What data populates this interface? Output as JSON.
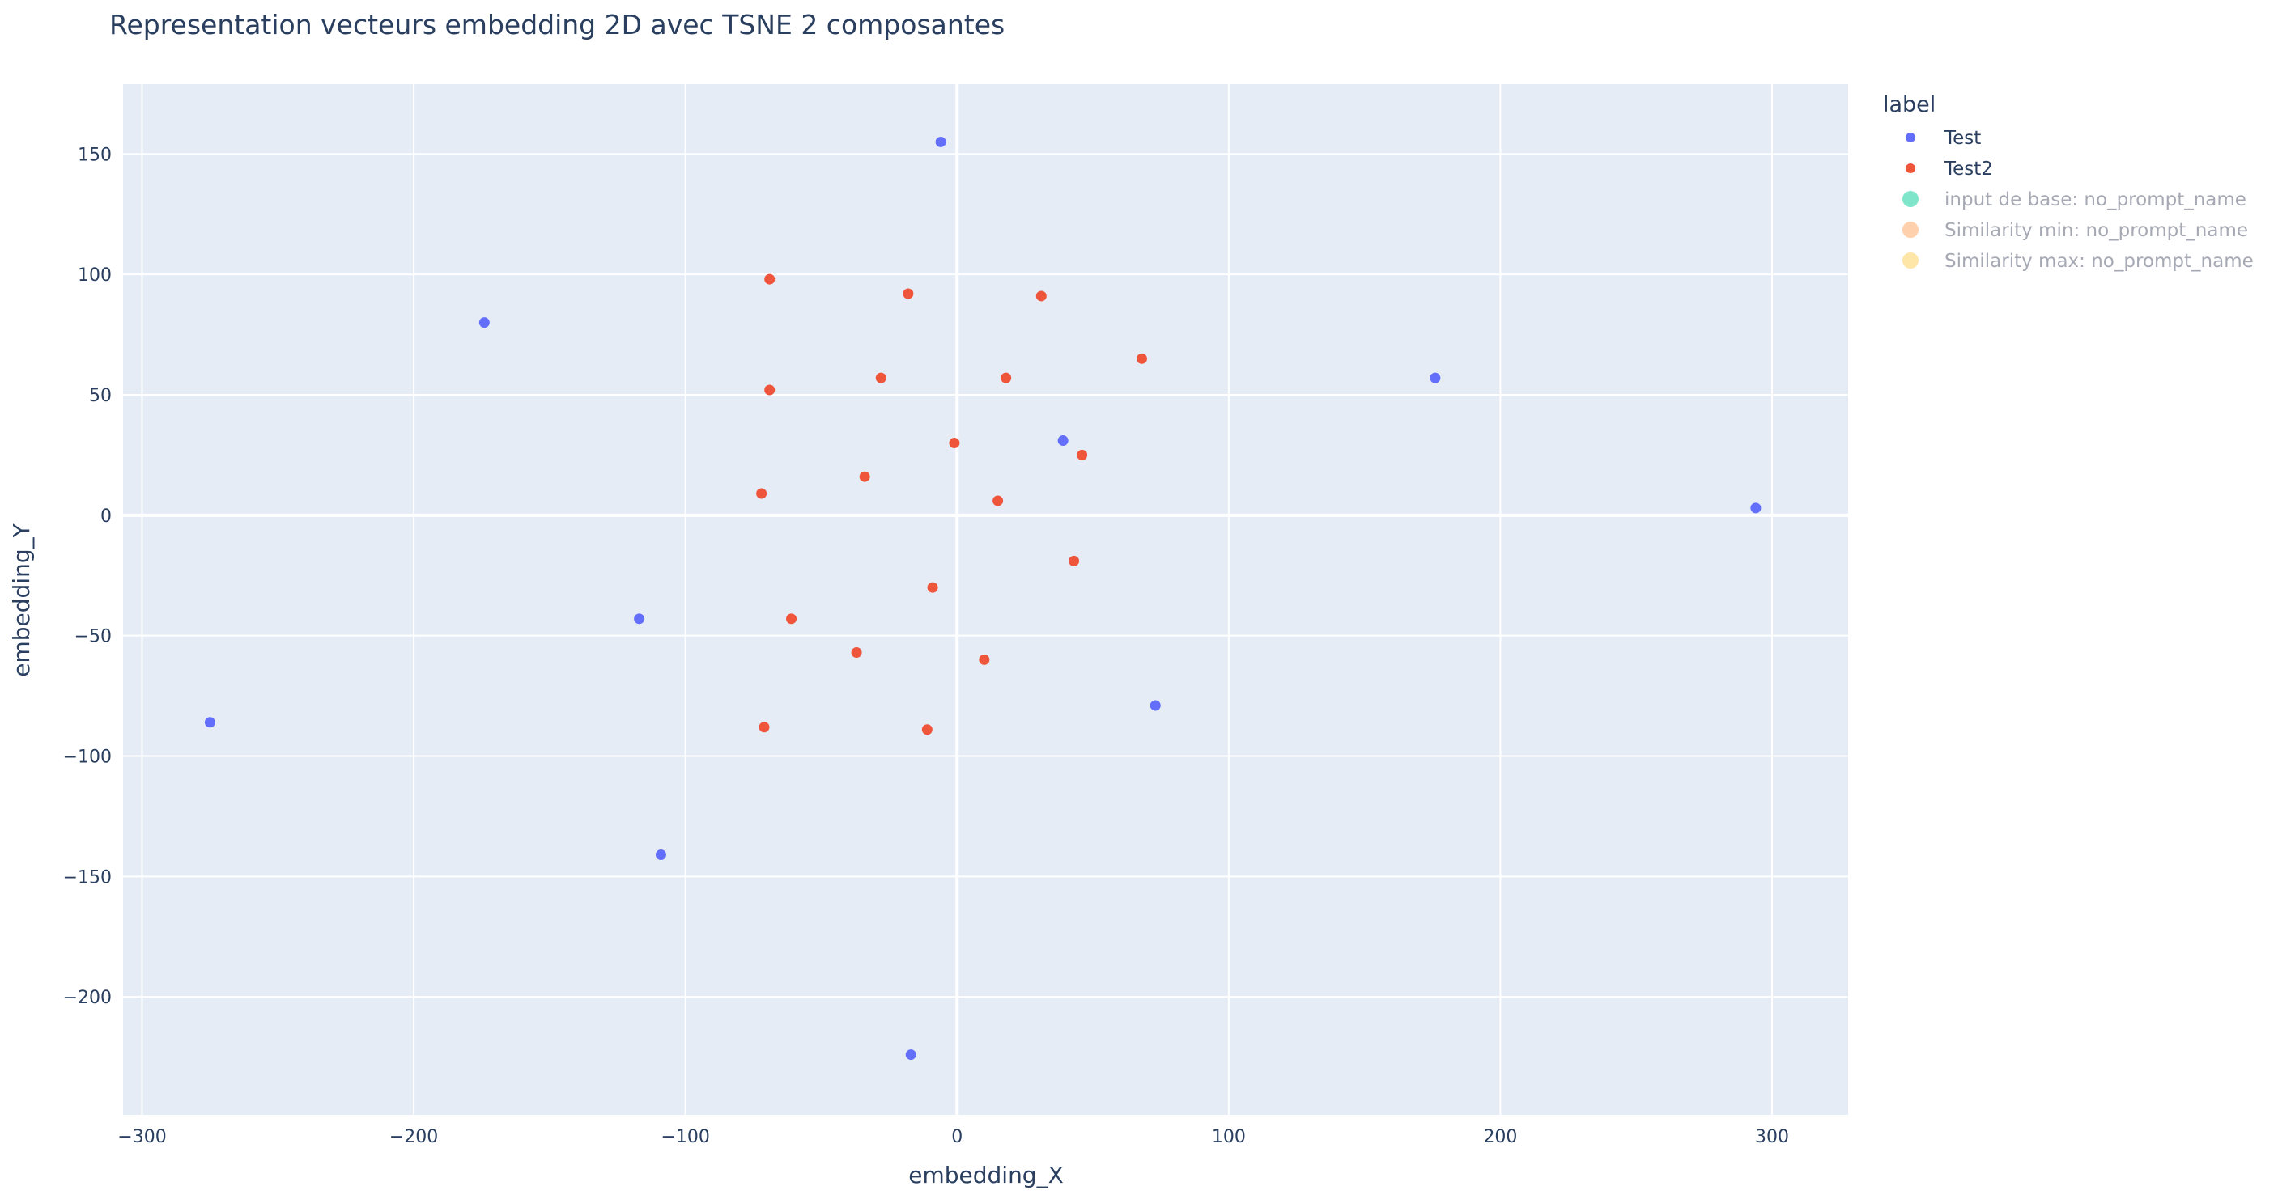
{
  "chart_data": {
    "type": "scatter",
    "title": "Representation vecteurs embedding 2D avec TSNE 2 composantes",
    "xlabel": "embedding_X",
    "ylabel": "embedding_Y",
    "xlim": [
      -307,
      328
    ],
    "ylim": [
      -249,
      179
    ],
    "xticks": [
      -300,
      -200,
      -100,
      0,
      100,
      200,
      300
    ],
    "yticks": [
      -200,
      -150,
      -100,
      -50,
      0,
      50,
      100,
      150
    ],
    "grid": true,
    "legend_title": "label",
    "legend_position": "right",
    "series": [
      {
        "name": "Test",
        "color": "#636efa",
        "legend_hidden": false,
        "points": [
          {
            "x": -6,
            "y": 155
          },
          {
            "x": -174,
            "y": 80
          },
          {
            "x": 176,
            "y": 57
          },
          {
            "x": 39,
            "y": 31
          },
          {
            "x": 294,
            "y": 3
          },
          {
            "x": -117,
            "y": -43
          },
          {
            "x": -275,
            "y": -86
          },
          {
            "x": 73,
            "y": -79
          },
          {
            "x": -109,
            "y": -141
          },
          {
            "x": -17,
            "y": -224
          }
        ]
      },
      {
        "name": "Test2",
        "color": "#ef553b",
        "legend_hidden": false,
        "points": [
          {
            "x": -69,
            "y": 98
          },
          {
            "x": -18,
            "y": 92
          },
          {
            "x": 31,
            "y": 91
          },
          {
            "x": 68,
            "y": 65
          },
          {
            "x": -28,
            "y": 57
          },
          {
            "x": 18,
            "y": 57
          },
          {
            "x": -69,
            "y": 52
          },
          {
            "x": -1,
            "y": 30
          },
          {
            "x": 46,
            "y": 25
          },
          {
            "x": -34,
            "y": 16
          },
          {
            "x": -72,
            "y": 9
          },
          {
            "x": 15,
            "y": 6
          },
          {
            "x": 43,
            "y": -19
          },
          {
            "x": -9,
            "y": -30
          },
          {
            "x": -61,
            "y": -43
          },
          {
            "x": -37,
            "y": -57
          },
          {
            "x": 10,
            "y": -60
          },
          {
            "x": -71,
            "y": -88
          },
          {
            "x": -11,
            "y": -89
          }
        ]
      },
      {
        "name": "input de base: no_prompt_name",
        "color": "#00cc96",
        "legend_hidden": true,
        "points": []
      },
      {
        "name": "Similarity min: no_prompt_name",
        "color": "#ffa15a",
        "legend_hidden": true,
        "points": []
      },
      {
        "name": "Similarity max: no_prompt_name",
        "color": "#fecb52",
        "legend_hidden": true,
        "points": []
      }
    ]
  }
}
